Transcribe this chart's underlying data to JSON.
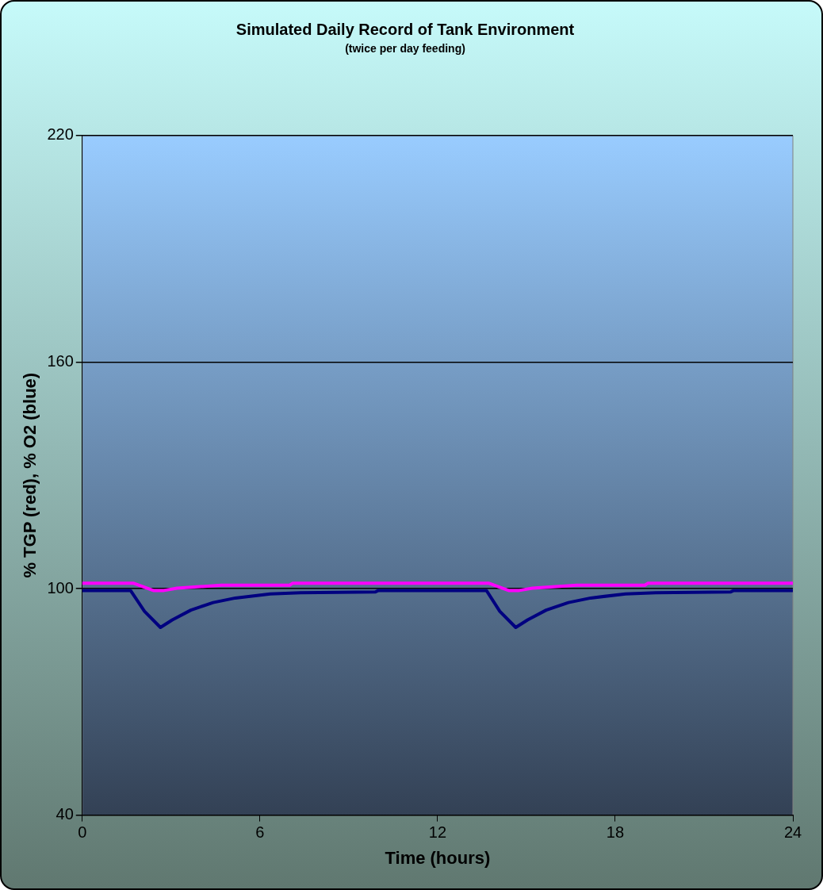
{
  "chart_data": {
    "type": "line",
    "title": "Simulated Daily Record of Tank Environment",
    "subtitle": "(twice per day feeding)",
    "xlabel": "Time (hours)",
    "ylabel": "% TGP (red), % O2 (blue)",
    "xlim": [
      0,
      24
    ],
    "xticks": [
      0,
      6,
      12,
      18,
      24
    ],
    "ylim": [
      40,
      220
    ],
    "yticks": [
      40,
      100,
      160,
      220
    ],
    "grid": "y",
    "legend": false,
    "marker": "none",
    "line_style": "solid",
    "series": [
      {
        "color": "#ff00ff",
        "x": [
          0,
          1.74,
          2.4,
          2.76,
          3.2,
          4.7,
          7.0,
          7.1,
          13.74,
          14.4,
          14.76,
          15.2,
          16.7,
          19.0,
          19.1,
          24
        ],
        "values": [
          101.4,
          101.4,
          99.5,
          99.5,
          100.1,
          100.9,
          100.9,
          101.4,
          101.4,
          99.5,
          99.5,
          100.1,
          100.9,
          100.9,
          101.4,
          101.4
        ]
      },
      {
        "color": "#000080",
        "x": [
          0,
          1.63,
          2.1,
          2.64,
          3.04,
          3.67,
          4.42,
          5.17,
          6.35,
          7.37,
          9.9,
          10.0,
          13.65,
          14.1,
          14.64,
          15.04,
          15.67,
          16.42,
          17.17,
          18.35,
          19.37,
          21.9,
          22.0,
          24
        ],
        "values": [
          99.5,
          99.5,
          94,
          89.7,
          91.7,
          94.3,
          96.3,
          97.5,
          98.6,
          98.9,
          99.1,
          99.5,
          99.5,
          94,
          89.7,
          91.7,
          94.3,
          96.3,
          97.5,
          98.6,
          98.9,
          99.1,
          99.5,
          99.5
        ]
      }
    ]
  }
}
